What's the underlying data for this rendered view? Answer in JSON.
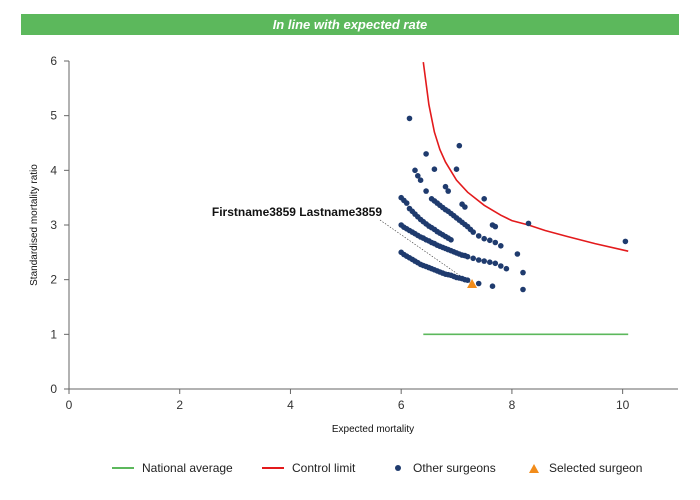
{
  "banner": {
    "text": "In line with expected rate",
    "color": "#5cb85c"
  },
  "chart_data": {
    "type": "scatter",
    "title": "",
    "xlabel": "Expected mortality",
    "ylabel": "Standardised mortality ratio",
    "xlim": [
      0,
      11
    ],
    "ylim": [
      0,
      6
    ],
    "x_ticks": [
      0,
      2,
      4,
      6,
      8,
      10
    ],
    "y_ticks": [
      0,
      1,
      2,
      3,
      4,
      5,
      6
    ],
    "grid": false,
    "legend_position": "bottom",
    "annotation": {
      "label": "Firstname3859 Lastname3859",
      "x": 7.28,
      "y": 1.92
    },
    "series": [
      {
        "name": "National average",
        "kind": "line",
        "color": "#5cb85c",
        "points": [
          [
            6.4,
            1.0
          ],
          [
            10.1,
            1.0
          ]
        ]
      },
      {
        "name": "Control limit",
        "kind": "line",
        "color": "#e31a1c",
        "points": [
          [
            6.4,
            5.98
          ],
          [
            6.5,
            5.2
          ],
          [
            6.6,
            4.7
          ],
          [
            6.7,
            4.38
          ],
          [
            6.8,
            4.15
          ],
          [
            7.0,
            3.82
          ],
          [
            7.2,
            3.6
          ],
          [
            7.5,
            3.36
          ],
          [
            7.8,
            3.18
          ],
          [
            8.0,
            3.08
          ],
          [
            8.3,
            3.0
          ],
          [
            8.6,
            2.9
          ],
          [
            9.0,
            2.79
          ],
          [
            9.5,
            2.66
          ],
          [
            10.1,
            2.52
          ]
        ]
      },
      {
        "name": "Other surgeons",
        "kind": "scatter",
        "color": "#1f3b6e",
        "points": [
          [
            6.0,
            2.5
          ],
          [
            6.05,
            2.46
          ],
          [
            6.1,
            2.43
          ],
          [
            6.15,
            2.4
          ],
          [
            6.2,
            2.37
          ],
          [
            6.25,
            2.34
          ],
          [
            6.3,
            2.31
          ],
          [
            6.35,
            2.28
          ],
          [
            6.4,
            2.26
          ],
          [
            6.45,
            2.24
          ],
          [
            6.5,
            2.22
          ],
          [
            6.55,
            2.2
          ],
          [
            6.6,
            2.18
          ],
          [
            6.65,
            2.16
          ],
          [
            6.7,
            2.14
          ],
          [
            6.75,
            2.12
          ],
          [
            6.8,
            2.1
          ],
          [
            6.85,
            2.09
          ],
          [
            6.9,
            2.08
          ],
          [
            6.95,
            2.06
          ],
          [
            7.0,
            2.04
          ],
          [
            7.05,
            2.03
          ],
          [
            7.1,
            2.02
          ],
          [
            7.15,
            2.0
          ],
          [
            7.2,
            1.99
          ],
          [
            7.4,
            1.93
          ],
          [
            6.0,
            3.0
          ],
          [
            6.05,
            2.96
          ],
          [
            6.1,
            2.93
          ],
          [
            6.15,
            2.9
          ],
          [
            6.2,
            2.87
          ],
          [
            6.25,
            2.84
          ],
          [
            6.3,
            2.81
          ],
          [
            6.35,
            2.78
          ],
          [
            6.4,
            2.76
          ],
          [
            6.45,
            2.73
          ],
          [
            6.5,
            2.71
          ],
          [
            6.55,
            2.68
          ],
          [
            6.6,
            2.66
          ],
          [
            6.65,
            2.63
          ],
          [
            6.7,
            2.61
          ],
          [
            6.75,
            2.59
          ],
          [
            6.8,
            2.57
          ],
          [
            6.85,
            2.55
          ],
          [
            6.9,
            2.53
          ],
          [
            6.95,
            2.51
          ],
          [
            7.0,
            2.49
          ],
          [
            7.05,
            2.47
          ],
          [
            7.1,
            2.45
          ],
          [
            7.15,
            2.44
          ],
          [
            7.2,
            2.42
          ],
          [
            7.3,
            2.39
          ],
          [
            7.4,
            2.36
          ],
          [
            7.5,
            2.34
          ],
          [
            7.6,
            2.32
          ],
          [
            7.7,
            2.3
          ],
          [
            7.8,
            2.25
          ],
          [
            6.0,
            3.5
          ],
          [
            6.05,
            3.45
          ],
          [
            6.1,
            3.4
          ],
          [
            6.15,
            3.3
          ],
          [
            6.2,
            3.25
          ],
          [
            6.25,
            3.2
          ],
          [
            6.3,
            3.15
          ],
          [
            6.35,
            3.1
          ],
          [
            6.4,
            3.06
          ],
          [
            6.45,
            3.02
          ],
          [
            6.5,
            2.98
          ],
          [
            6.55,
            2.95
          ],
          [
            6.6,
            2.92
          ],
          [
            6.65,
            2.88
          ],
          [
            6.7,
            2.85
          ],
          [
            6.75,
            2.82
          ],
          [
            6.8,
            2.79
          ],
          [
            6.85,
            2.76
          ],
          [
            6.9,
            2.73
          ],
          [
            6.55,
            3.48
          ],
          [
            6.6,
            3.44
          ],
          [
            6.65,
            3.4
          ],
          [
            6.7,
            3.36
          ],
          [
            6.75,
            3.32
          ],
          [
            6.8,
            3.28
          ],
          [
            6.85,
            3.25
          ],
          [
            6.9,
            3.21
          ],
          [
            6.95,
            3.17
          ],
          [
            7.0,
            3.13
          ],
          [
            7.05,
            3.09
          ],
          [
            7.1,
            3.05
          ],
          [
            7.15,
            3.01
          ],
          [
            7.2,
            2.97
          ],
          [
            7.25,
            2.92
          ],
          [
            7.3,
            2.87
          ],
          [
            7.4,
            2.8
          ],
          [
            7.5,
            2.75
          ],
          [
            7.6,
            2.72
          ],
          [
            7.7,
            2.68
          ],
          [
            7.8,
            2.62
          ],
          [
            6.15,
            4.95
          ],
          [
            6.45,
            4.3
          ],
          [
            6.25,
            4.0
          ],
          [
            6.3,
            3.9
          ],
          [
            6.35,
            3.82
          ],
          [
            6.6,
            4.02
          ],
          [
            6.8,
            3.7
          ],
          [
            6.85,
            3.62
          ],
          [
            7.0,
            4.02
          ],
          [
            7.05,
            4.45
          ],
          [
            7.1,
            3.38
          ],
          [
            7.15,
            3.33
          ],
          [
            6.45,
            3.62
          ],
          [
            7.5,
            3.48
          ],
          [
            7.65,
            3.0
          ],
          [
            7.7,
            2.97
          ],
          [
            8.3,
            3.03
          ],
          [
            8.1,
            2.47
          ],
          [
            7.9,
            2.2
          ],
          [
            7.65,
            1.88
          ],
          [
            8.2,
            2.13
          ],
          [
            8.2,
            1.82
          ],
          [
            10.05,
            2.7
          ]
        ]
      },
      {
        "name": "Selected surgeon",
        "kind": "triangle",
        "color": "#f28c1a",
        "points": [
          [
            7.28,
            1.92
          ]
        ]
      }
    ]
  }
}
